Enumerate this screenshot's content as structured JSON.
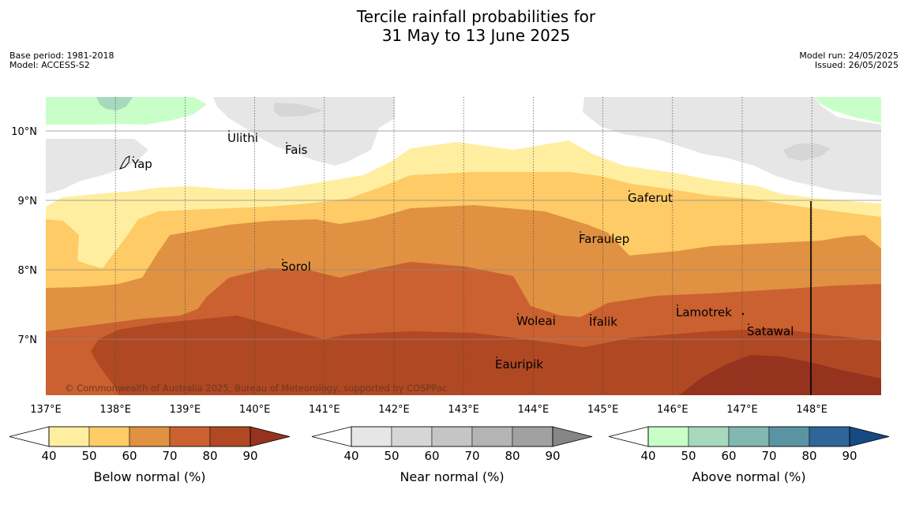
{
  "title_line1": "Tercile rainfall probabilities for",
  "title_line2": "31 May to 13 June 2025",
  "base_period": "Base period: 1981-2018",
  "model": "Model: ACCESS-S2",
  "model_run": "Model run: 24/05/2025",
  "issued": "Issued: 26/05/2025",
  "copyright": "© Commonwealth of Australia 2025, Bureau of Meteorology, supported by COSPPac",
  "lon_ticks": [
    "137°E",
    "138°E",
    "139°E",
    "140°E",
    "141°E",
    "142°E",
    "143°E",
    "144°E",
    "145°E",
    "146°E",
    "147°E",
    "148°E"
  ],
  "lat_ticks": [
    "10°N",
    "9°N",
    "8°N",
    "7°N"
  ],
  "places": [
    {
      "name": "Ulithi"
    },
    {
      "name": "Fais"
    },
    {
      "name": "Yap"
    },
    {
      "name": "Gaferut"
    },
    {
      "name": "Faraulep"
    },
    {
      "name": "Sorol"
    },
    {
      "name": "Lamotrek"
    },
    {
      "name": "Woleai"
    },
    {
      "name": "Ifalik"
    },
    {
      "name": "Satawal"
    },
    {
      "name": "Eauripik"
    }
  ],
  "colorbars": [
    {
      "label": "Below normal (%)",
      "ticks": [
        "40",
        "50",
        "60",
        "70",
        "80",
        "90"
      ],
      "colors": [
        "#ffeea0",
        "#fecb66",
        "#e09142",
        "#cb6130",
        "#b04823",
        "#96331f"
      ]
    },
    {
      "label": "Near normal (%)",
      "ticks": [
        "40",
        "50",
        "60",
        "70",
        "80",
        "90"
      ],
      "colors": [
        "#e6e6e6",
        "#d6d6d6",
        "#c5c5c5",
        "#b4b4b4",
        "#a1a1a1",
        "#868686"
      ]
    },
    {
      "label": "Above normal (%)",
      "ticks": [
        "40",
        "50",
        "60",
        "70",
        "80",
        "90"
      ],
      "colors": [
        "#c8ffc8",
        "#a7d9bd",
        "#83b7b1",
        "#5a94a2",
        "#2e6699",
        "#164a82"
      ]
    }
  ]
}
